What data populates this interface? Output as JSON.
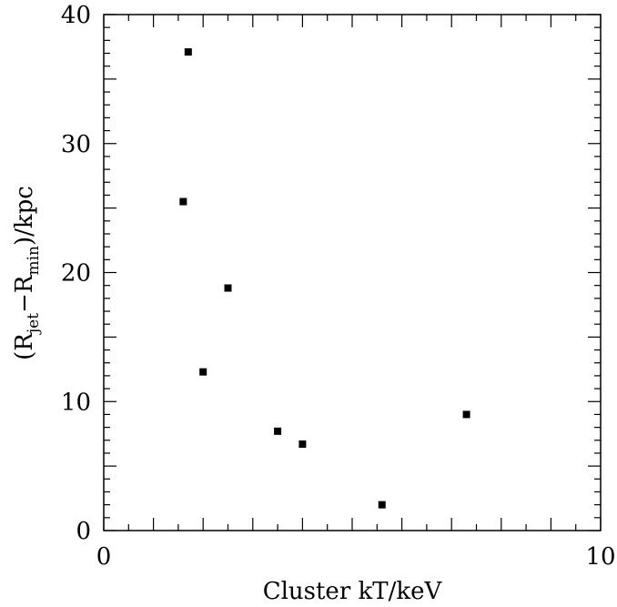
{
  "chart_data": {
    "type": "scatter",
    "title": "",
    "xlabel": "Cluster kT/keV",
    "ylabel": {
      "open": "(R",
      "sub1": "jet",
      "mid": "−R",
      "sub2": "min",
      "close": ")/kpc"
    },
    "xlim": [
      0,
      10
    ],
    "ylim": [
      0,
      40
    ],
    "x_ticks": [
      0,
      10
    ],
    "y_ticks": [
      0,
      10,
      20,
      30,
      40
    ],
    "x_tick_labels": [
      "0",
      "10"
    ],
    "y_tick_labels": [
      "0",
      "10",
      "20",
      "30",
      "40"
    ],
    "grid": false,
    "marker": "square",
    "color": "#000000",
    "series": [
      {
        "x": [
          1.7,
          1.6,
          2.5,
          2.0,
          3.5,
          4.0,
          5.6,
          7.3
        ],
        "y": [
          37.1,
          25.5,
          18.8,
          12.3,
          7.7,
          6.7,
          2.0,
          9.0
        ]
      }
    ]
  }
}
